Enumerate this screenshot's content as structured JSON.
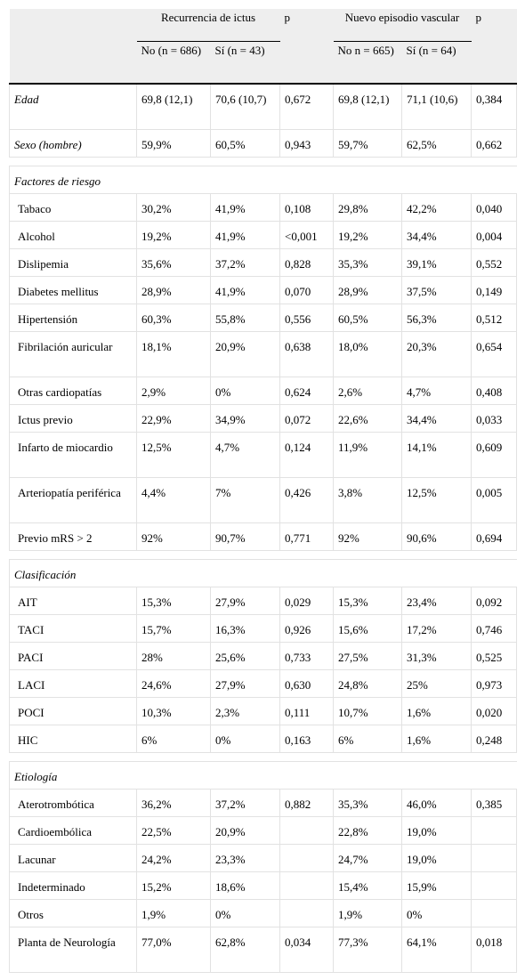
{
  "header": {
    "group1": "Recurrencia de ictus",
    "p1": "p",
    "group2": "Nuevo episodio vascular",
    "p2": "p",
    "sub": [
      "No (n = 686)",
      "Sí (n = 43)",
      "No n = 665)",
      "Sí (n = 64)"
    ]
  },
  "rows": [
    {
      "label": "Edad",
      "italic": true,
      "cells": [
        "69,8 (12,1)",
        "70,6 (10,7)",
        "0,672",
        "69,8 (12,1)",
        "71,1 (10,6)",
        "0,384"
      ],
      "tall": true
    },
    {
      "label": "Sexo (hombre)",
      "italic": true,
      "cells": [
        "59,9%",
        "60,5%",
        "0,943",
        "59,7%",
        "62,5%",
        "0,662"
      ]
    },
    {
      "separator": true
    },
    {
      "section": "Factores de riesgo"
    },
    {
      "label": "Tabaco",
      "cells": [
        "30,2%",
        "41,9%",
        "0,108",
        "29,8%",
        "42,2%",
        "0,040"
      ]
    },
    {
      "label": "Alcohol",
      "cells": [
        "19,2%",
        "41,9%",
        "<0,001",
        "19,2%",
        "34,4%",
        "0,004"
      ]
    },
    {
      "label": "Dislipemia",
      "cells": [
        "35,6%",
        "37,2%",
        "0,828",
        "35,3%",
        "39,1%",
        "0,552"
      ]
    },
    {
      "label": "Diabetes mellitus",
      "cells": [
        "28,9%",
        "41,9%",
        "0,070",
        "28,9%",
        "37,5%",
        "0,149"
      ]
    },
    {
      "label": "Hipertensión",
      "cells": [
        "60,3%",
        "55,8%",
        "0,556",
        "60,5%",
        "56,3%",
        "0,512"
      ]
    },
    {
      "label": "Fibrilación auricular",
      "cells": [
        "18,1%",
        "20,9%",
        "0,638",
        "18,0%",
        "20,3%",
        "0,654"
      ],
      "tall": true
    },
    {
      "label": "Otras cardiopatías",
      "cells": [
        "2,9%",
        "0%",
        "0,624",
        "2,6%",
        "4,7%",
        "0,408"
      ]
    },
    {
      "label": "Ictus previo",
      "cells": [
        "22,9%",
        "34,9%",
        "0,072",
        "22,6%",
        "34,4%",
        "0,033"
      ]
    },
    {
      "label": "Infarto de miocardio",
      "cells": [
        "12,5%",
        "4,7%",
        "0,124",
        "11,9%",
        "14,1%",
        "0,609"
      ],
      "tall": true
    },
    {
      "label": "Arteriopatía periférica",
      "cells": [
        "4,4%",
        "7%",
        "0,426",
        "3,8%",
        "12,5%",
        "0,005"
      ],
      "tall": true
    },
    {
      "label": "Previo mRS > 2",
      "cells": [
        "92%",
        "90,7%",
        "0,771",
        "92%",
        "90,6%",
        "0,694"
      ]
    },
    {
      "separator": true
    },
    {
      "section": "Clasificación"
    },
    {
      "label": "AIT",
      "cells": [
        "15,3%",
        "27,9%",
        "0,029",
        "15,3%",
        "23,4%",
        "0,092"
      ]
    },
    {
      "label": "TACI",
      "cells": [
        "15,7%",
        "16,3%",
        "0,926",
        "15,6%",
        "17,2%",
        "0,746"
      ]
    },
    {
      "label": "PACI",
      "cells": [
        "28%",
        "25,6%",
        "0,733",
        "27,5%",
        "31,3%",
        "0,525"
      ]
    },
    {
      "label": "LACI",
      "cells": [
        "24,6%",
        "27,9%",
        "0,630",
        "24,8%",
        "25%",
        "0,973"
      ]
    },
    {
      "label": "POCI",
      "cells": [
        "10,3%",
        "2,3%",
        "0,111",
        "10,7%",
        "1,6%",
        "0,020"
      ]
    },
    {
      "label": "HIC",
      "cells": [
        "6%",
        "0%",
        "0,163",
        "6%",
        "1,6%",
        "0,248"
      ]
    },
    {
      "separator": true
    },
    {
      "section": "Etiología"
    },
    {
      "label": "Aterotrombótica",
      "cells": [
        "36,2%",
        "37,2%",
        "0,882",
        "35,3%",
        "46,0%",
        "0,385"
      ]
    },
    {
      "label": "Cardioembólica",
      "cells": [
        "22,5%",
        "20,9%",
        "",
        "22,8%",
        "19,0%",
        ""
      ]
    },
    {
      "label": "Lacunar",
      "cells": [
        "24,2%",
        "23,3%",
        "",
        "24,7%",
        "19,0%",
        ""
      ]
    },
    {
      "label": "Indeterminado",
      "cells": [
        "15,2%",
        "18,6%",
        "",
        "15,4%",
        "15,9%",
        ""
      ]
    },
    {
      "label": "Otros",
      "cells": [
        "1,9%",
        "0%",
        "",
        "1,9%",
        "0%",
        ""
      ]
    },
    {
      "label": "Planta de Neurología",
      "cells": [
        "77,0%",
        "62,8%",
        "0,034",
        "77,3%",
        "64,1%",
        "0,018"
      ],
      "tall": true
    }
  ]
}
